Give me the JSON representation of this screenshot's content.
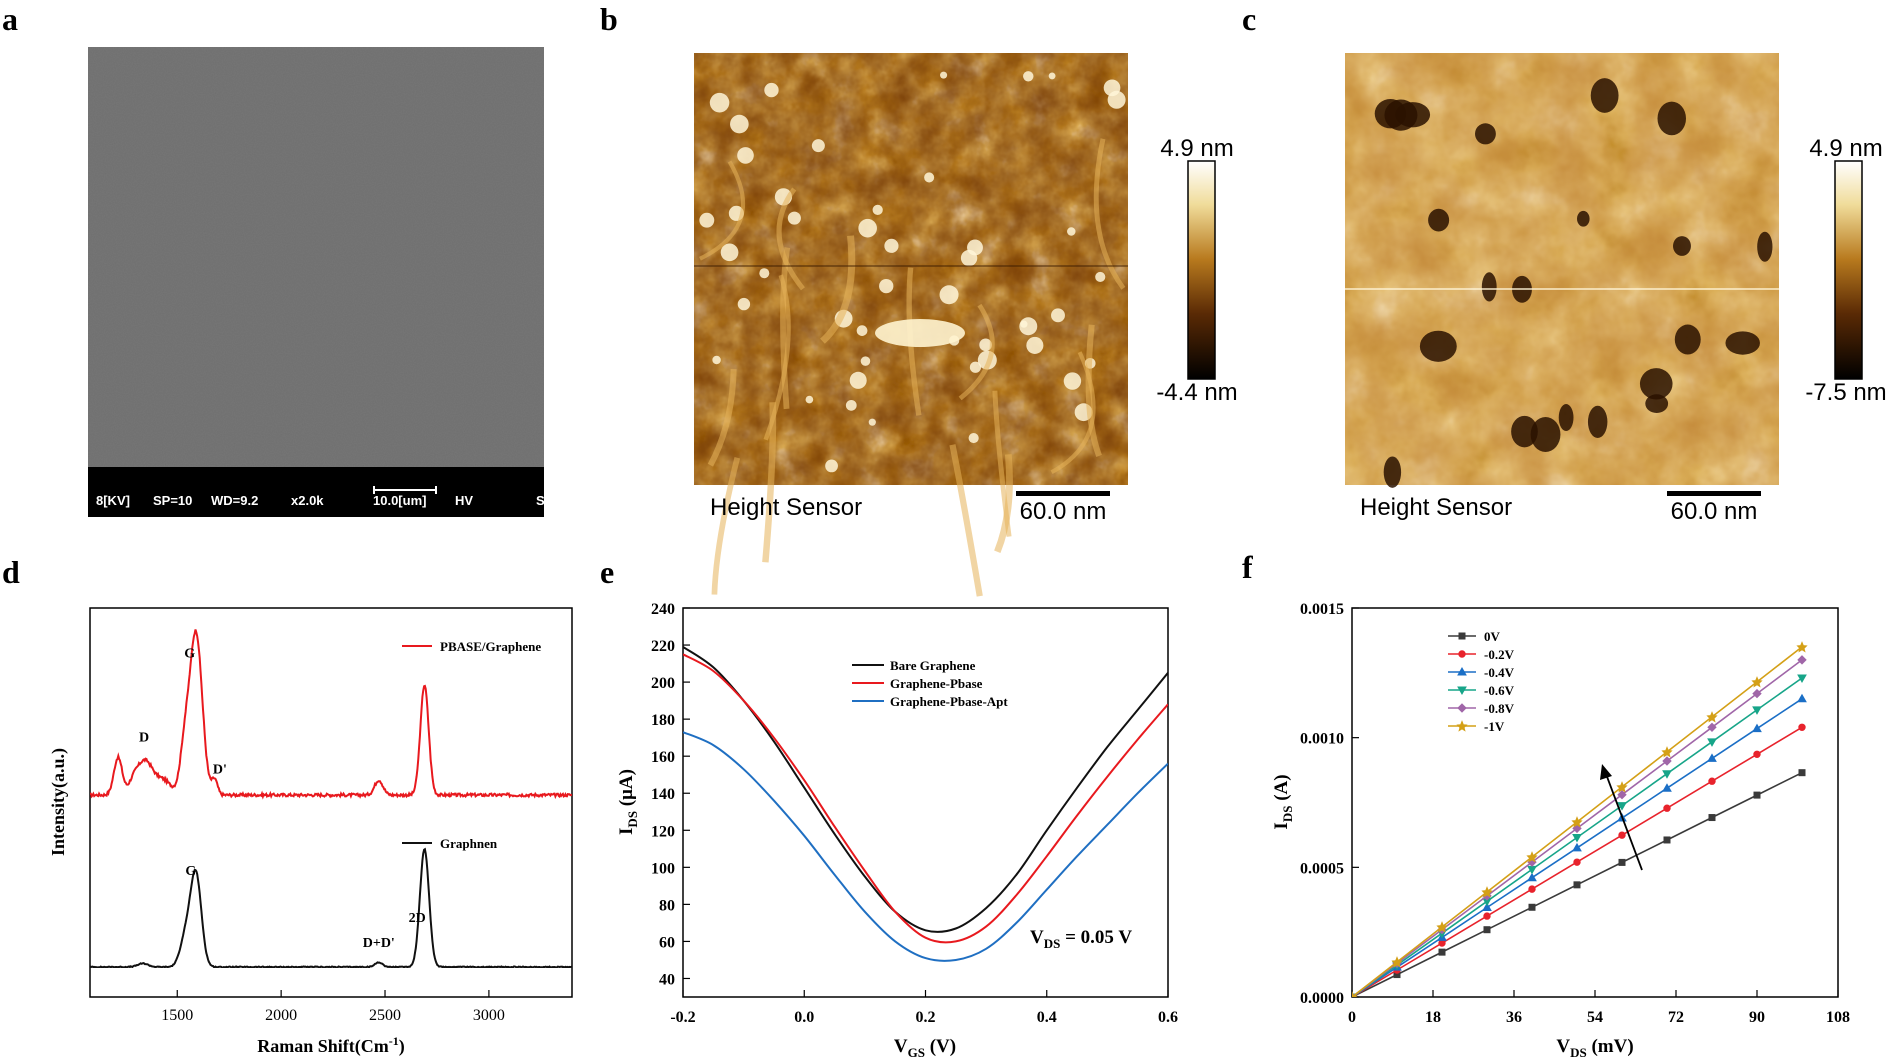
{
  "panels": {
    "a": {
      "letter": "a",
      "sem_info": [
        "8[KV]",
        "SP=10",
        "WD=9.2",
        "x2.0k",
        "10.0[um]",
        "HV",
        "S"
      ]
    },
    "b": {
      "letter": "b",
      "caption": "Height Sensor",
      "scalebar": "60.0 nm",
      "colorbar_max": "4.9 nm",
      "colorbar_min": "-4.4 nm"
    },
    "c": {
      "letter": "c",
      "caption": "Height Sensor",
      "scalebar": "60.0 nm",
      "colorbar_max": "4.9 nm",
      "colorbar_min": "-7.5 nm"
    },
    "d": {
      "letter": "d"
    },
    "e": {
      "letter": "e"
    },
    "f": {
      "letter": "f"
    }
  },
  "colors": {
    "red": "#e8191e",
    "black": "#111111",
    "blue": "#1f6fc2",
    "f_series": [
      "#3a3a3a",
      "#e8232c",
      "#1b6fc6",
      "#17a589",
      "#a066a8",
      "#d4a017"
    ]
  },
  "chart_data": [
    {
      "id": "d",
      "type": "line",
      "xlabel": "Raman Shift(Cm",
      "xlabel_sup": "-1",
      "xlabel_close": ")",
      "ylabel": "Intensity(a.u.)",
      "xlim": [
        1080,
        3400
      ],
      "xticks": [
        1500,
        2000,
        2500,
        3000
      ],
      "series": [
        {
          "name": "PBASE/Graphene",
          "color": "#e8191e",
          "baseline": 0.0,
          "noise": 0.012,
          "peaks": [
            {
              "x": 1215,
              "h": 0.3,
              "w": 20
            },
            {
              "x": 1290,
              "h": 0.1,
              "w": 25
            },
            {
              "x": 1345,
              "h": 0.26,
              "w": 35
            },
            {
              "x": 1430,
              "h": 0.12,
              "w": 40
            },
            {
              "x": 1535,
              "h": 0.35,
              "w": 22
            },
            {
              "x": 1590,
              "h": 1.3,
              "w": 30
            },
            {
              "x": 1680,
              "h": 0.12,
              "w": 14
            },
            {
              "x": 2470,
              "h": 0.12,
              "w": 20
            },
            {
              "x": 2690,
              "h": 0.88,
              "w": 20
            }
          ]
        },
        {
          "name": "Graphnen",
          "color": "#111111",
          "baseline": 0.0,
          "noise": 0.004,
          "peaks": [
            {
              "x": 1335,
              "h": 0.03,
              "w": 25
            },
            {
              "x": 1540,
              "h": 0.25,
              "w": 26
            },
            {
              "x": 1590,
              "h": 0.78,
              "w": 26
            },
            {
              "x": 2470,
              "h": 0.04,
              "w": 18
            },
            {
              "x": 2690,
              "h": 1.0,
              "w": 22
            }
          ]
        }
      ],
      "annotations": [
        {
          "text": "G",
          "x": 1560,
          "series": 0,
          "dy": -0.08
        },
        {
          "text": "D",
          "x": 1340,
          "series": 0,
          "dy": -0.1
        },
        {
          "text": "D'",
          "x": 1705,
          "series": 0,
          "dy": -0.1
        },
        {
          "text": "G",
          "x": 1565,
          "series": 1,
          "dy": -0.08
        },
        {
          "text": "2D",
          "x": 2655,
          "series": 1,
          "dy": -0.05
        },
        {
          "text": "D+D'",
          "x": 2470,
          "series": 1,
          "dy": -0.08
        }
      ]
    },
    {
      "id": "e",
      "type": "line",
      "xlabel": "V",
      "xlabel_sub": "GS",
      "xlabel_unit": " (V)",
      "ylabel": "I",
      "ylabel_sub": "DS",
      "ylabel_unit": " (μA)",
      "xlim": [
        -0.2,
        0.6
      ],
      "ylim": [
        30,
        240
      ],
      "xticks": [
        "-0.2",
        "0.0",
        "0.2",
        "0.4",
        "0.6"
      ],
      "yticks": [
        40,
        60,
        80,
        100,
        120,
        140,
        160,
        180,
        200,
        220,
        240
      ],
      "annotation": "V",
      "annotation_sub": "DS",
      "annotation_rest": " = 0.05 V",
      "series": [
        {
          "name": "Bare Graphene",
          "color": "#111111",
          "x": [
            -0.2,
            -0.15,
            -0.1,
            -0.05,
            0.0,
            0.05,
            0.1,
            0.15,
            0.2,
            0.25,
            0.3,
            0.35,
            0.4,
            0.45,
            0.5,
            0.55,
            0.6
          ],
          "y": [
            219,
            208,
            190,
            168,
            143,
            118,
            95,
            76,
            66,
            67,
            78,
            96,
            120,
            143,
            165,
            185,
            205
          ]
        },
        {
          "name": "Graphene-Pbase",
          "color": "#e8191e",
          "x": [
            -0.2,
            -0.15,
            -0.1,
            -0.05,
            0.0,
            0.05,
            0.1,
            0.15,
            0.2,
            0.25,
            0.3,
            0.35,
            0.4,
            0.45,
            0.5,
            0.55,
            0.6
          ],
          "y": [
            215,
            206,
            190,
            170,
            147,
            122,
            98,
            76,
            62,
            60,
            68,
            85,
            106,
            128,
            149,
            169,
            188
          ]
        },
        {
          "name": "Graphene-Pbase-Apt",
          "color": "#1f6fc2",
          "x": [
            -0.2,
            -0.15,
            -0.1,
            -0.05,
            0.0,
            0.05,
            0.1,
            0.15,
            0.2,
            0.25,
            0.3,
            0.35,
            0.4,
            0.45,
            0.5,
            0.55,
            0.6
          ],
          "y": [
            173,
            166,
            153,
            136,
            117,
            96,
            76,
            60,
            51,
            50,
            56,
            70,
            88,
            106,
            123,
            140,
            156
          ]
        }
      ]
    },
    {
      "id": "f",
      "type": "line",
      "xlabel": "V",
      "xlabel_sub": "DS",
      "xlabel_unit": " (mV)",
      "ylabel": "I",
      "ylabel_sub": "DS",
      "ylabel_unit": " (A)",
      "xlim": [
        0,
        108
      ],
      "ylim": [
        0,
        0.0015
      ],
      "xticks": [
        0,
        18,
        36,
        54,
        72,
        90,
        108
      ],
      "yticks": [
        "0.0000",
        "0.0005",
        "0.0010",
        "0.0015"
      ],
      "ytick_values": [
        0,
        0.0005,
        0.001,
        0.0015
      ],
      "x_points": [
        0,
        10,
        20,
        30,
        40,
        50,
        60,
        70,
        80,
        90,
        100
      ],
      "series": [
        {
          "name": "0V",
          "slope": 8.65e-06,
          "marker": "square"
        },
        {
          "name": "-0.2V",
          "slope": 1.04e-05,
          "marker": "circle"
        },
        {
          "name": "-0.4V",
          "slope": 1.15e-05,
          "marker": "triangle"
        },
        {
          "name": "-0.6V",
          "slope": 1.23e-05,
          "marker": "triangle-down"
        },
        {
          "name": "-0.8V",
          "slope": 1.3e-05,
          "marker": "diamond"
        },
        {
          "name": "-1V",
          "slope": 1.35e-05,
          "marker": "star"
        }
      ]
    }
  ]
}
